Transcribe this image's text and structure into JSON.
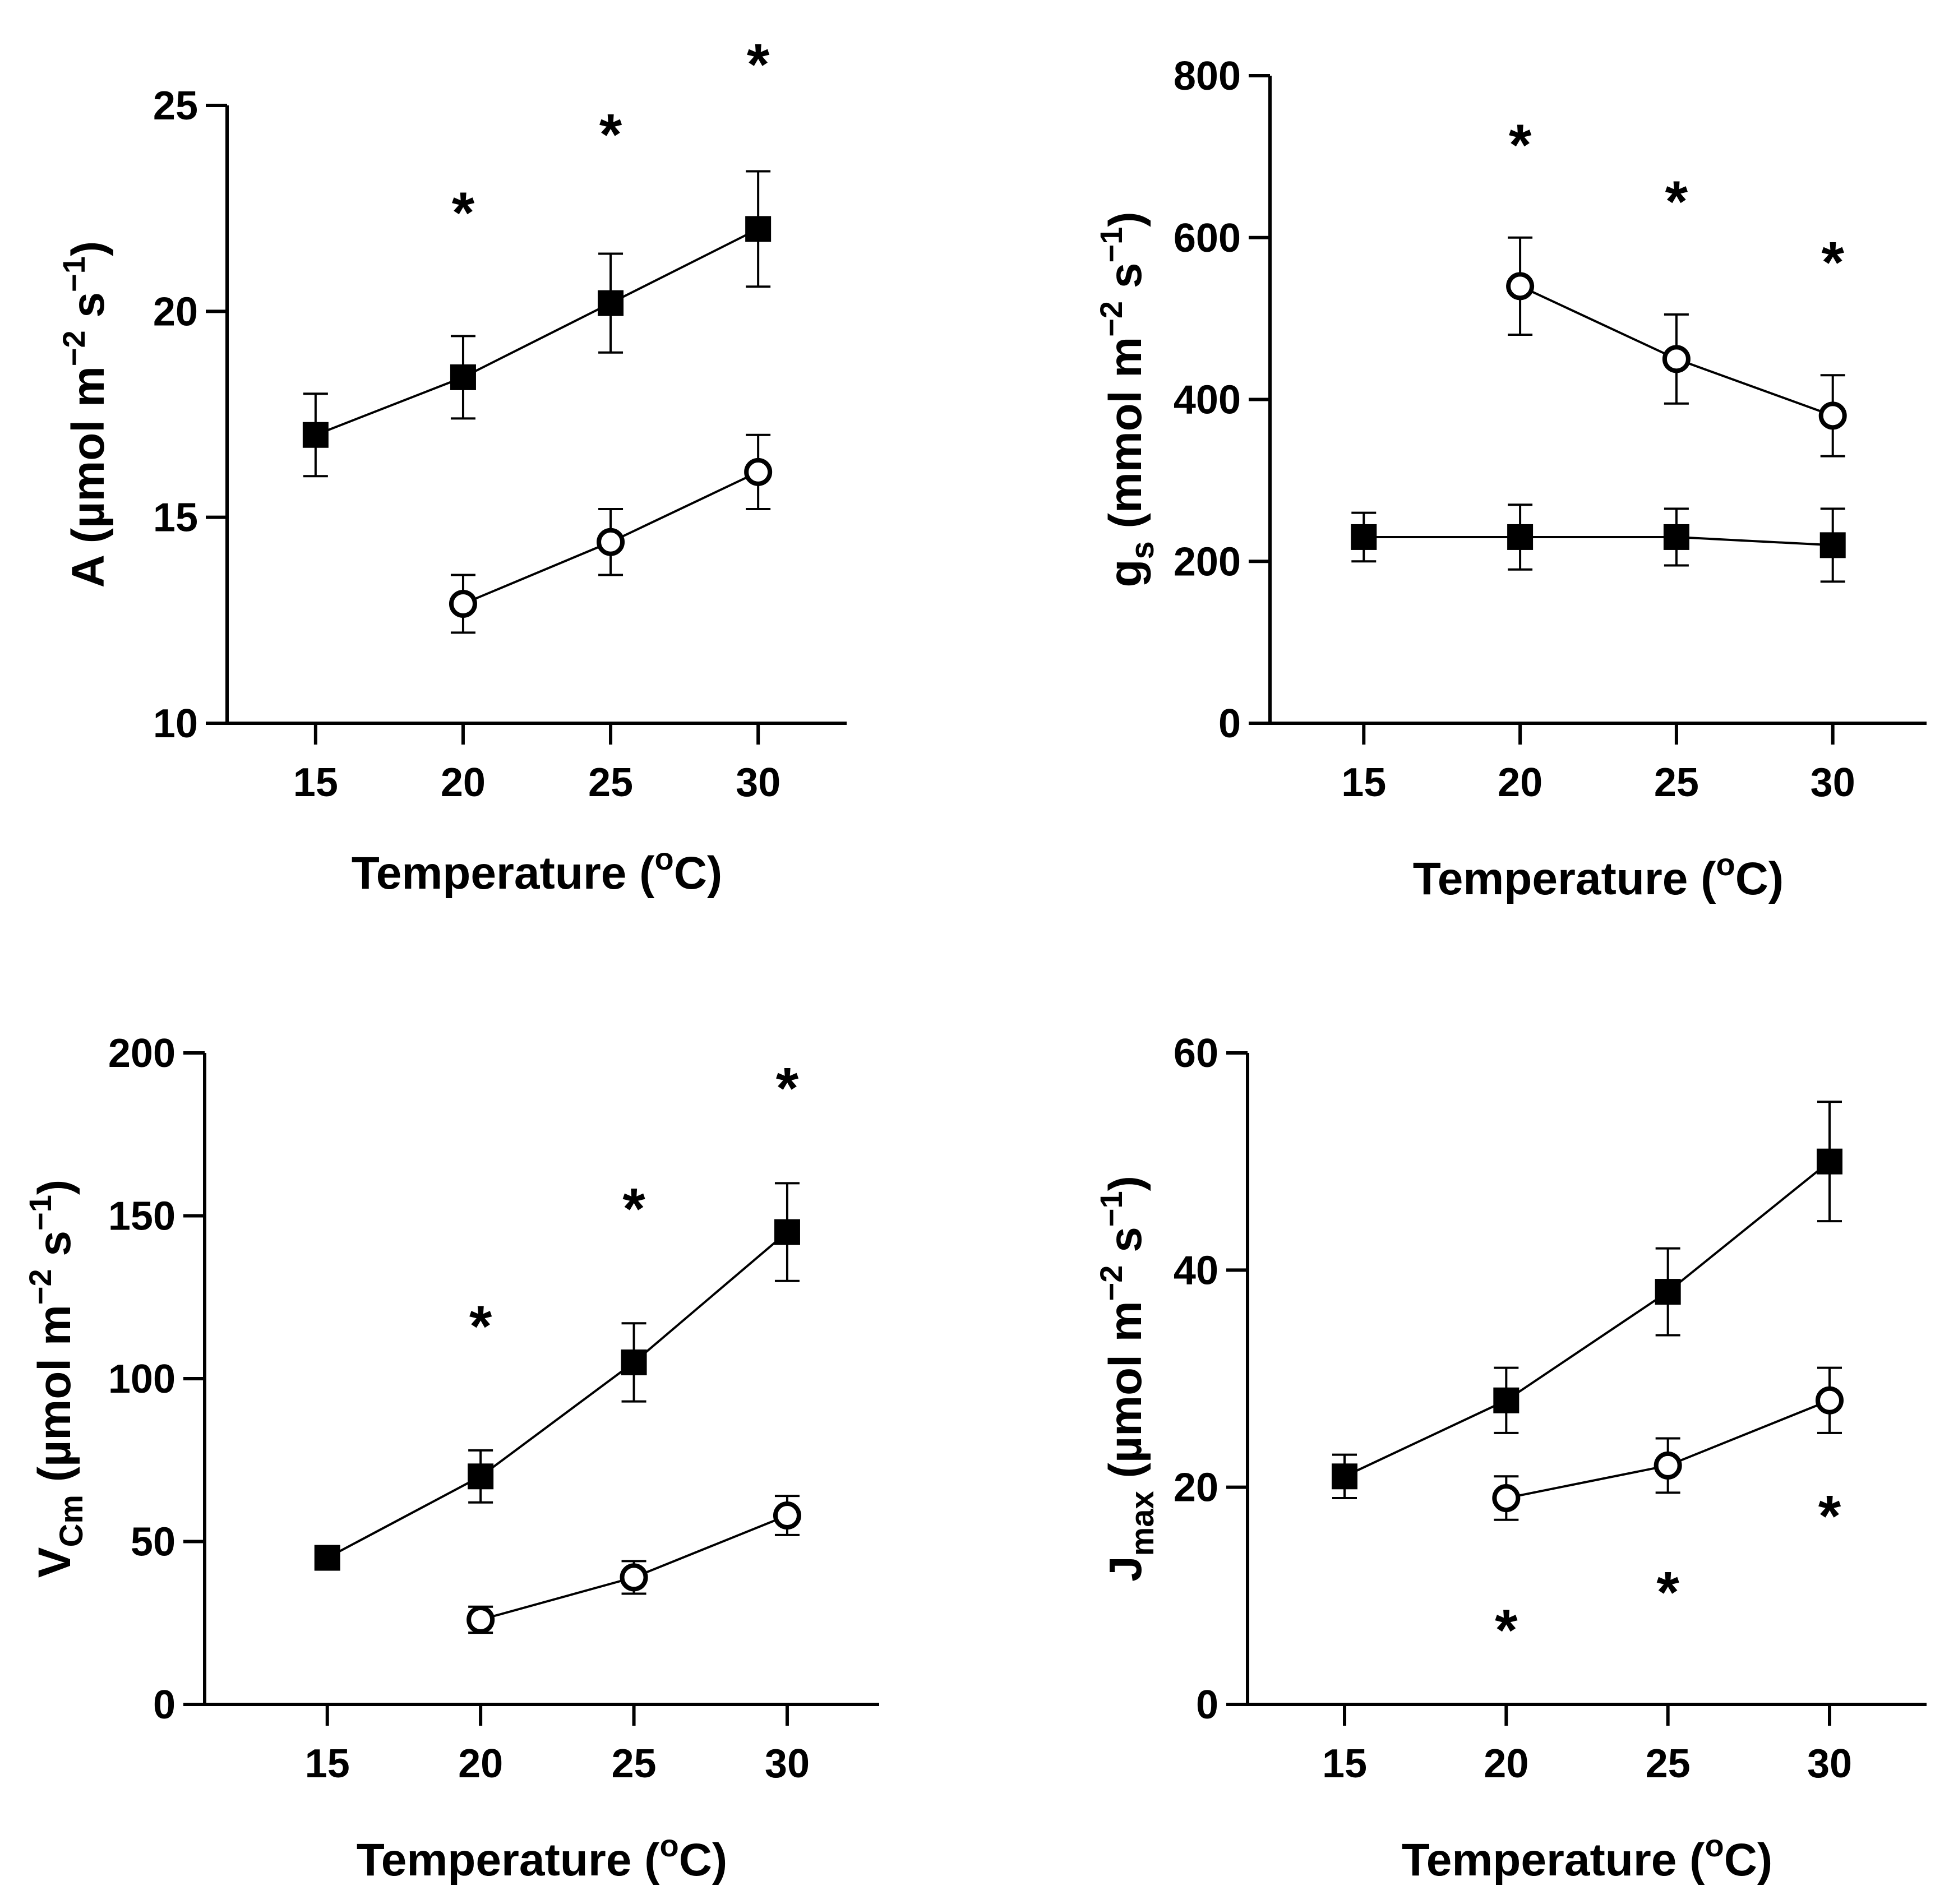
{
  "chart_data": [
    {
      "id": "A",
      "type": "line",
      "xlabel": "Temperature (oC)",
      "xlabel_parts": {
        "main": "Temperature (",
        "sup": "o",
        "tail": "C)"
      },
      "ylabel": "A (µmol m−2 s−1)",
      "ylabel_parts": {
        "main": "A",
        "sub": "",
        "unit_prefix": " (µmol m",
        "exp1": "−2",
        "mid": " s",
        "exp2": "−1",
        "close": ")"
      },
      "x_ticks": [
        15,
        20,
        25,
        30
      ],
      "y_ticks": [
        10,
        15,
        20,
        25
      ],
      "ylim": [
        10,
        25
      ],
      "xlim": [
        12,
        33
      ],
      "series": [
        {
          "name": "filled squares",
          "marker": "square",
          "x": [
            15,
            20,
            25,
            30
          ],
          "y": [
            17.0,
            18.4,
            20.2,
            22.0
          ],
          "err": [
            1.0,
            1.0,
            1.2,
            1.4
          ]
        },
        {
          "name": "open circles",
          "marker": "circle",
          "x": [
            20,
            25,
            30
          ],
          "y": [
            12.9,
            14.4,
            16.1
          ],
          "err": [
            0.7,
            0.8,
            0.9
          ]
        }
      ],
      "annotations": [
        {
          "text": "*",
          "x": 20,
          "y": 22.7
        },
        {
          "text": "*",
          "x": 25,
          "y": 24.6
        },
        {
          "text": "*",
          "x": 30,
          "y": 26.3
        }
      ]
    },
    {
      "id": "gs",
      "type": "line",
      "xlabel": "Temperature (oC)",
      "xlabel_parts": {
        "main": "Temperature (",
        "sup": "o",
        "tail": "C)"
      },
      "ylabel": "gs (mmol m−2 s−1)",
      "ylabel_parts": {
        "main": "g",
        "sub": "s",
        "unit_prefix": " (mmol m",
        "exp1": "−2",
        "mid": " s",
        "exp2": "−1",
        "close": ")"
      },
      "x_ticks": [
        15,
        20,
        25,
        30
      ],
      "y_ticks": [
        0,
        200,
        400,
        600,
        800
      ],
      "ylim": [
        0,
        800
      ],
      "xlim": [
        12,
        33
      ],
      "series": [
        {
          "name": "filled squares",
          "marker": "square",
          "x": [
            15,
            20,
            25,
            30
          ],
          "y": [
            230,
            230,
            230,
            220
          ],
          "err": [
            30,
            40,
            35,
            45
          ]
        },
        {
          "name": "open circles",
          "marker": "circle",
          "x": [
            20,
            25,
            30
          ],
          "y": [
            540,
            450,
            380
          ],
          "err": [
            60,
            55,
            50
          ]
        }
      ],
      "annotations": [
        {
          "text": "*",
          "x": 20,
          "y": 730
        },
        {
          "text": "*",
          "x": 25,
          "y": 660
        },
        {
          "text": "*",
          "x": 30,
          "y": 585
        }
      ]
    },
    {
      "id": "VCm",
      "type": "line",
      "xlabel": "Temperature (oC)",
      "xlabel_parts": {
        "main": "Temperature (",
        "sup": "o",
        "tail": "C)"
      },
      "ylabel": "VCm (µmol m−2 s−1)",
      "ylabel_parts": {
        "main": "V",
        "sub": "Cm",
        "unit_prefix": " (µmol m",
        "exp1": "−2",
        "mid": " s",
        "exp2": "−1",
        "close": ")"
      },
      "x_ticks": [
        15,
        20,
        25,
        30
      ],
      "y_ticks": [
        0,
        50,
        100,
        150,
        200
      ],
      "ylim": [
        0,
        200
      ],
      "xlim": [
        11,
        33
      ],
      "series": [
        {
          "name": "filled squares",
          "marker": "square",
          "x": [
            15,
            20,
            25,
            30
          ],
          "y": [
            45,
            70,
            105,
            145
          ],
          "err": [
            0,
            8,
            12,
            15
          ]
        },
        {
          "name": "open circles",
          "marker": "circle",
          "x": [
            20,
            25,
            30
          ],
          "y": [
            26,
            39,
            58
          ],
          "err": [
            4,
            5,
            6
          ]
        }
      ],
      "annotations": [
        {
          "text": "*",
          "x": 20,
          "y": 120
        },
        {
          "text": "*",
          "x": 25,
          "y": 156
        },
        {
          "text": "*",
          "x": 30,
          "y": 193
        }
      ]
    },
    {
      "id": "Jmax",
      "type": "line",
      "xlabel": "Temperature (oC)",
      "xlabel_parts": {
        "main": "Temperature (",
        "sup": "o",
        "tail": "C)"
      },
      "ylabel": "Jmax (µmol m−2 s−1)",
      "ylabel_parts": {
        "main": "J",
        "sub": "max",
        "unit_prefix": " (µmol m",
        "exp1": "−2",
        "mid": " s",
        "exp2": "−1",
        "close": ")"
      },
      "x_ticks": [
        15,
        20,
        25,
        30
      ],
      "y_ticks": [
        0,
        20,
        40,
        60
      ],
      "ylim": [
        0,
        60
      ],
      "xlim": [
        12,
        33
      ],
      "series": [
        {
          "name": "filled squares",
          "marker": "square",
          "x": [
            15,
            20,
            25,
            30
          ],
          "y": [
            21,
            28,
            38,
            50
          ],
          "err": [
            2,
            3,
            4,
            5.5
          ]
        },
        {
          "name": "open circles",
          "marker": "circle",
          "x": [
            20,
            25,
            30
          ],
          "y": [
            19,
            22,
            28
          ],
          "err": [
            2,
            2.5,
            3
          ]
        }
      ],
      "annotations": [
        {
          "text": "*",
          "x": 20,
          "y": 8
        },
        {
          "text": "*",
          "x": 25,
          "y": 11.5
        },
        {
          "text": "*",
          "x": 30,
          "y": 18.5
        }
      ]
    }
  ]
}
